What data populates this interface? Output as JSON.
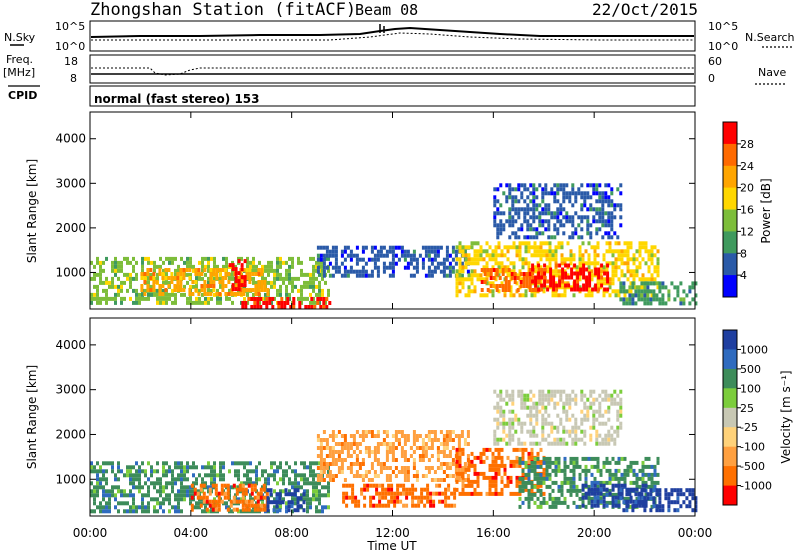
{
  "header": {
    "station": "Zhongshan Station (fitACF)",
    "beam": "Beam 08",
    "date": "22/Oct/2015"
  },
  "top_panels": {
    "nsky_label": "N.Sky",
    "nsky_ticks": [
      "10^5",
      "10^0"
    ],
    "nsearch_label": "N.Search",
    "nsearch_ticks": [
      "10^5",
      "10^0"
    ],
    "freq_label": "Freq.",
    "freq_unit": "[MHz]",
    "freq_ticks": [
      "18",
      "8"
    ],
    "nave_label": "Nave",
    "nave_ticks": [
      "60",
      "0"
    ],
    "cpid_label": "CPID",
    "cpid_value": "normal (fast stereo) 153"
  },
  "chart_data": [
    {
      "type": "heatmap",
      "name": "power",
      "ylabel": "Slant Range [km]",
      "yticks": [
        "1000",
        "2000",
        "3000",
        "4000"
      ],
      "ylim": [
        180,
        4600
      ],
      "xlim": [
        0,
        24
      ],
      "colorbar_label": "Power [dB]",
      "colorbar_ticks": [
        "28",
        "24",
        "20",
        "16",
        "12",
        "8",
        "4"
      ],
      "colors": [
        "#ff0000",
        "#ff6a00",
        "#ffa500",
        "#ffd700",
        "#7dbd3a",
        "#3f9a5e",
        "#2a5aa8",
        "#0000ff"
      ],
      "regions": [
        {
          "x0": 0.0,
          "x1": 9.5,
          "y0": 350,
          "y1": 1350,
          "level": 4
        },
        {
          "x0": 2.0,
          "x1": 7.0,
          "y0": 500,
          "y1": 1100,
          "level": 2
        },
        {
          "x0": 5.5,
          "x1": 6.2,
          "y0": 600,
          "y1": 1300,
          "level": 0
        },
        {
          "x0": 6.0,
          "x1": 9.5,
          "y0": 200,
          "y1": 450,
          "level": 0
        },
        {
          "x0": 9.0,
          "x1": 15.0,
          "y0": 900,
          "y1": 1600,
          "level": 6
        },
        {
          "x0": 14.5,
          "x1": 22.5,
          "y0": 500,
          "y1": 1700,
          "level": 3
        },
        {
          "x0": 15.5,
          "x1": 18.0,
          "y0": 600,
          "y1": 1100,
          "level": 1
        },
        {
          "x0": 17.5,
          "x1": 20.5,
          "y0": 600,
          "y1": 1200,
          "level": 0
        },
        {
          "x0": 16.0,
          "x1": 21.0,
          "y0": 1800,
          "y1": 3000,
          "level": 6
        },
        {
          "x0": 21.0,
          "x1": 24.0,
          "y0": 350,
          "y1": 800,
          "level": 5
        }
      ]
    },
    {
      "type": "heatmap",
      "name": "velocity",
      "ylabel": "Slant Range [km]",
      "yticks": [
        "1000",
        "2000",
        "3000",
        "4000"
      ],
      "ylim": [
        180,
        4600
      ],
      "xlim": [
        0,
        24
      ],
      "colorbar_label": "Velocity [m s⁻¹]",
      "colorbar_ticks": [
        "1000",
        "500",
        "100",
        "25",
        "-25",
        "-100",
        "-500",
        "-1000"
      ],
      "colors": [
        "#1f3fa0",
        "#2f6bbf",
        "#3d8c5a",
        "#7ccd3c",
        "#c8c8b4",
        "#ffd27a",
        "#ffa040",
        "#ff7000",
        "#ff0000"
      ],
      "regions": [
        {
          "x0": 0.0,
          "x1": 9.5,
          "y0": 300,
          "y1": 1400,
          "level": 2
        },
        {
          "x0": 4.0,
          "x1": 7.0,
          "y0": 300,
          "y1": 900,
          "level": 7
        },
        {
          "x0": 7.0,
          "x1": 8.5,
          "y0": 300,
          "y1": 800,
          "level": 0
        },
        {
          "x0": 9.0,
          "x1": 15.0,
          "y0": 1000,
          "y1": 2100,
          "level": 6
        },
        {
          "x0": 10.0,
          "x1": 14.5,
          "y0": 400,
          "y1": 900,
          "level": 7
        },
        {
          "x0": 14.5,
          "x1": 18.0,
          "y0": 700,
          "y1": 1700,
          "level": 7
        },
        {
          "x0": 17.0,
          "x1": 22.5,
          "y0": 400,
          "y1": 1500,
          "level": 2
        },
        {
          "x0": 19.5,
          "x1": 22.0,
          "y0": 400,
          "y1": 900,
          "level": 0
        },
        {
          "x0": 16.0,
          "x1": 21.0,
          "y0": 1800,
          "y1": 3000,
          "level": 4
        },
        {
          "x0": 21.0,
          "x1": 24.0,
          "y0": 350,
          "y1": 800,
          "level": 0
        }
      ]
    }
  ],
  "x_axis": {
    "ticks": [
      "00:00",
      "04:00",
      "08:00",
      "12:00",
      "16:00",
      "20:00",
      "00:00"
    ],
    "label": "Time UT"
  }
}
